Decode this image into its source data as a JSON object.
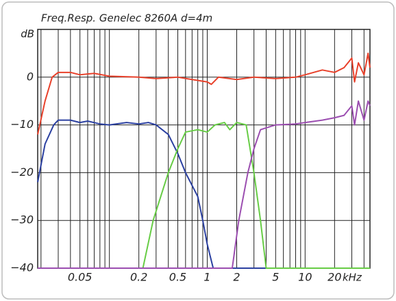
{
  "chart_data": {
    "type": "line",
    "title": "Freq.Resp. Genelec 8260A d=4m",
    "y_label": "dB",
    "x_unit": "kHz",
    "log_x": true,
    "grid": true,
    "xlim": [
      0.0185,
      46
    ],
    "xticks": [
      0.05,
      0.2,
      0.5,
      1,
      2,
      5,
      10,
      20
    ],
    "x_grid": [
      0.02,
      0.03,
      0.04,
      0.05,
      0.06,
      0.07,
      0.08,
      0.09,
      0.1,
      0.2,
      0.3,
      0.4,
      0.5,
      0.6,
      0.7,
      0.8,
      0.9,
      1,
      2,
      3,
      4,
      5,
      6,
      7,
      8,
      9,
      10,
      20,
      30,
      40
    ],
    "ylim": [
      -40,
      10
    ],
    "yticks": [
      {
        "value": -40,
        "label": "−40"
      },
      {
        "value": -30,
        "label": "−30"
      },
      {
        "value": -20,
        "label": "−20"
      },
      {
        "value": -10,
        "label": "−10"
      },
      0
    ],
    "series": [
      {
        "color": "#e8402a",
        "x": [
          0.0185,
          0.022,
          0.026,
          0.03,
          0.04,
          0.05,
          0.07,
          0.1,
          0.2,
          0.3,
          0.5,
          0.7,
          1,
          1.1,
          1.3,
          2,
          3,
          5,
          8,
          10,
          15,
          20,
          25,
          30,
          32,
          35,
          40,
          44,
          46
        ],
        "values": [
          -12,
          -5,
          0,
          1,
          1,
          0.5,
          0.8,
          0.2,
          0,
          -0.3,
          0,
          -0.5,
          -1,
          -1.5,
          0,
          -0.5,
          0,
          -0.3,
          0,
          0.5,
          1.5,
          1,
          2,
          4,
          -1,
          3,
          0.5,
          5,
          2
        ]
      },
      {
        "color": "#2a3fa0",
        "x": [
          0.0185,
          0.022,
          0.027,
          0.03,
          0.04,
          0.05,
          0.06,
          0.08,
          0.1,
          0.15,
          0.2,
          0.25,
          0.3,
          0.4,
          0.5,
          0.6,
          0.8,
          0.9,
          1.0,
          1.15,
          46
        ],
        "values": [
          -22,
          -14,
          -10,
          -9,
          -9,
          -9.5,
          -9.2,
          -9.8,
          -10,
          -9.5,
          -9.8,
          -9.5,
          -10,
          -12,
          -16,
          -20,
          -25,
          -30,
          -35,
          -40,
          -40
        ]
      },
      {
        "color": "#66cc44",
        "x": [
          0.0185,
          0.22,
          0.28,
          0.4,
          0.5,
          0.6,
          0.8,
          1,
          1.2,
          1.5,
          1.7,
          2,
          2.5,
          3,
          3.5,
          4,
          46
        ],
        "values": [
          -40,
          -40,
          -30,
          -20,
          -15,
          -11.5,
          -11,
          -11.5,
          -10,
          -9.5,
          -11,
          -9.5,
          -10,
          -20,
          -30,
          -40,
          -40
        ]
      },
      {
        "color": "#9b4db0",
        "x": [
          0.0185,
          1.8,
          2.1,
          2.6,
          3,
          3.5,
          5,
          8,
          10,
          15,
          20,
          25,
          30,
          32,
          35,
          40,
          44,
          46
        ],
        "values": [
          -40,
          -40,
          -30,
          -20,
          -15,
          -11,
          -10,
          -9.8,
          -9.5,
          -9,
          -8.5,
          -8,
          -6,
          -10,
          -5,
          -9,
          -5,
          -6
        ]
      }
    ]
  }
}
